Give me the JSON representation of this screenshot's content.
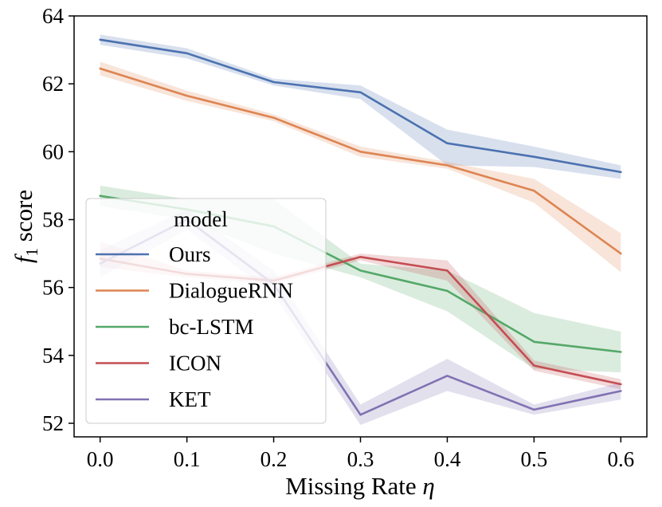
{
  "chart_data": {
    "type": "line",
    "title": "",
    "xlabel": "Missing Rate η",
    "xlabel_text": "Missing Rate ",
    "xlabel_symbol": "η",
    "ylabel": "f1 score",
    "ylabel_symbol": "f",
    "ylabel_subscript": "1",
    "ylabel_text": " score",
    "x": [
      0.0,
      0.1,
      0.2,
      0.3,
      0.4,
      0.5,
      0.6
    ],
    "xlim": [
      -0.03,
      0.63
    ],
    "ylim": [
      51.6,
      64.0
    ],
    "xticks": [
      "0.0",
      "0.1",
      "0.2",
      "0.3",
      "0.4",
      "0.5",
      "0.6"
    ],
    "yticks": [
      "52",
      "54",
      "56",
      "58",
      "60",
      "62",
      "64"
    ],
    "grid": false,
    "legend": {
      "title": "model",
      "placement": "lower-left"
    },
    "series": [
      {
        "name": "Ours",
        "color": "#4c72b0",
        "values": [
          63.3,
          62.9,
          62.05,
          61.75,
          60.25,
          59.85,
          59.4
        ],
        "lower": [
          63.15,
          62.75,
          61.95,
          61.55,
          59.6,
          59.55,
          59.2
        ],
        "upper": [
          63.45,
          63.05,
          62.15,
          61.95,
          60.65,
          60.15,
          59.6
        ]
      },
      {
        "name": "DialogueRNN",
        "color": "#dd8452",
        "values": [
          62.45,
          61.65,
          61.0,
          60.0,
          59.6,
          58.85,
          57.0
        ],
        "lower": [
          62.25,
          61.5,
          60.9,
          59.85,
          59.5,
          58.5,
          56.45
        ],
        "upper": [
          62.65,
          61.8,
          61.1,
          60.15,
          59.7,
          59.2,
          57.6
        ]
      },
      {
        "name": "bc-LSTM",
        "color": "#55a868",
        "values": [
          58.7,
          58.3,
          57.8,
          56.5,
          55.9,
          54.4,
          54.1
        ],
        "lower": [
          58.4,
          58.0,
          57.0,
          56.3,
          55.3,
          53.6,
          53.5
        ],
        "upper": [
          59.0,
          58.6,
          58.6,
          56.7,
          56.5,
          55.25,
          54.7
        ]
      },
      {
        "name": "ICON",
        "color": "#c44e52",
        "values": [
          56.85,
          56.4,
          56.2,
          56.9,
          56.5,
          53.7,
          53.15
        ],
        "lower": [
          56.6,
          56.3,
          56.1,
          56.8,
          56.2,
          53.55,
          53.0
        ],
        "upper": [
          57.35,
          56.5,
          56.3,
          57.0,
          56.8,
          53.85,
          53.3
        ]
      },
      {
        "name": "KET",
        "color": "#8172b3",
        "values": [
          56.7,
          58.0,
          56.1,
          52.25,
          53.4,
          52.4,
          52.95
        ],
        "lower": [
          56.3,
          57.7,
          55.8,
          51.95,
          52.95,
          52.25,
          52.7
        ],
        "upper": [
          57.1,
          58.3,
          56.5,
          52.55,
          53.9,
          52.55,
          53.2
        ]
      }
    ]
  }
}
